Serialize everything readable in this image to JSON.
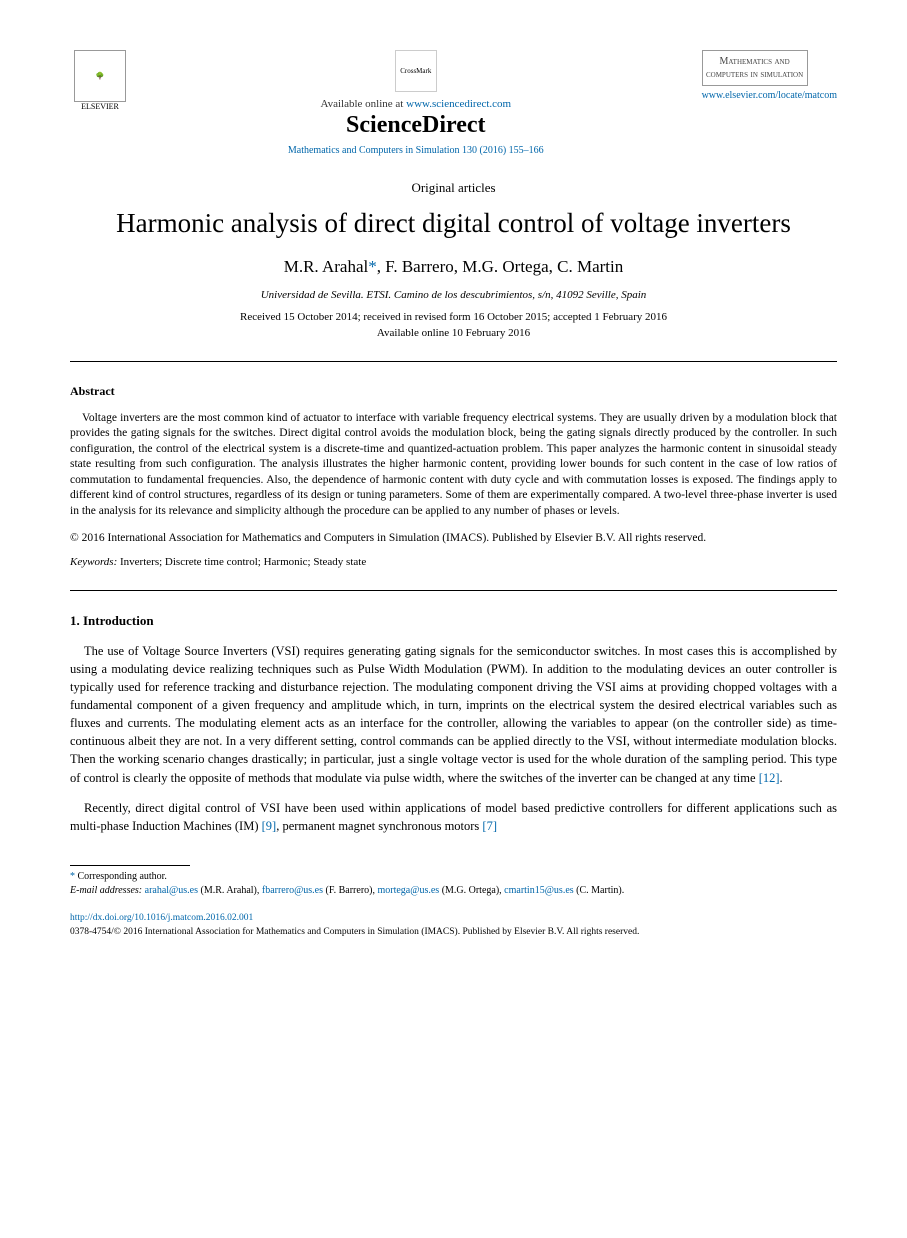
{
  "header": {
    "publisher_logo_text": "ELSEVIER",
    "crossmark_label": "CrossMark",
    "available_prefix": "Available online at ",
    "available_url": "www.sciencedirect.com",
    "brand": "ScienceDirect",
    "journal_ref": "Mathematics and Computers in Simulation 130 (2016) 155–166",
    "journal_cover": "Mathematics and computers in simulation",
    "locate_url": "www.elsevier.com/locate/matcom"
  },
  "article": {
    "type": "Original articles",
    "title": "Harmonic analysis of direct digital control of voltage inverters",
    "authors_pre": "M.R. Arahal",
    "corr_symbol": "*",
    "authors_post": ", F. Barrero, M.G. Ortega, C. Martin",
    "affiliation": "Universidad de Sevilla. ETSI. Camino de los descubrimientos, s/n, 41092 Seville, Spain",
    "dates_line1": "Received 15 October 2014; received in revised form 16 October 2015; accepted 1 February 2016",
    "dates_line2": "Available online 10 February 2016"
  },
  "abstract": {
    "heading": "Abstract",
    "text": "Voltage inverters are the most common kind of actuator to interface with variable frequency electrical systems. They are usually driven by a modulation block that provides the gating signals for the switches. Direct digital control avoids the modulation block, being the gating signals directly produced by the controller. In such configuration, the control of the electrical system is a discrete-time and quantized-actuation problem. This paper analyzes the harmonic content in sinusoidal steady state resulting from such configuration. The analysis illustrates the higher harmonic content, providing lower bounds for such content in the case of low ratios of commutation to fundamental frequencies. Also, the dependence of harmonic content with duty cycle and with commutation losses is exposed. The findings apply to different kind of control structures, regardless of its design or tuning parameters. Some of them are experimentally compared. A two-level three-phase inverter is used in the analysis for its relevance and simplicity although the procedure can be applied to any number of phases or levels.",
    "copyright": "© 2016 International Association for Mathematics and Computers in Simulation (IMACS). Published by Elsevier B.V. All rights reserved.",
    "keywords_label": "Keywords:",
    "keywords": " Inverters; Discrete time control; Harmonic; Steady state"
  },
  "intro": {
    "heading": "1.  Introduction",
    "p1_a": "The use of Voltage Source Inverters (VSI) requires generating gating signals for the semiconductor switches. In most cases this is accomplished by using a modulating device realizing techniques such as Pulse Width Modulation (PWM). In addition to the modulating devices an outer controller is typically used for reference tracking and disturbance rejection. The modulating component driving the VSI aims at providing chopped voltages with a fundamental component of a given frequency and amplitude which, in turn, imprints on the electrical system the desired electrical variables such as fluxes and currents. The modulating element acts as an interface for the controller, allowing the variables to appear (on the controller side) as time-continuous albeit they are not. In a very different setting, control commands can be applied directly to the VSI, without intermediate modulation blocks. Then the working scenario changes drastically; in particular, just a single voltage vector is used for the whole duration of the sampling period. This type of control is clearly the opposite of methods that modulate via pulse width, where the switches of the inverter can be changed at any time ",
    "p1_ref": "[12]",
    "p1_b": ".",
    "p2_a": "Recently, direct digital control of VSI have been used within applications of model based predictive controllers for different applications such as multi-phase Induction Machines (IM) ",
    "p2_ref1": "[9]",
    "p2_mid": ", permanent magnet synchronous motors ",
    "p2_ref2": "[7]"
  },
  "footnotes": {
    "corr_label": "Corresponding author.",
    "email_label": "E-mail addresses:",
    "emails": [
      {
        "addr": "arahal@us.es",
        "who": " (M.R. Arahal), "
      },
      {
        "addr": "fbarrero@us.es",
        "who": " (F. Barrero), "
      },
      {
        "addr": "mortega@us.es",
        "who": " (M.G. Ortega), "
      },
      {
        "addr": "cmartin15@us.es",
        "who": " (C. Martin)."
      }
    ],
    "doi": "http://dx.doi.org/10.1016/j.matcom.2016.02.001",
    "issn_line": "0378-4754/© 2016 International Association for Mathematics and Computers in Simulation (IMACS). Published by Elsevier B.V. All rights reserved."
  },
  "colors": {
    "link": "#0066aa",
    "text": "#000000",
    "background": "#ffffff"
  }
}
